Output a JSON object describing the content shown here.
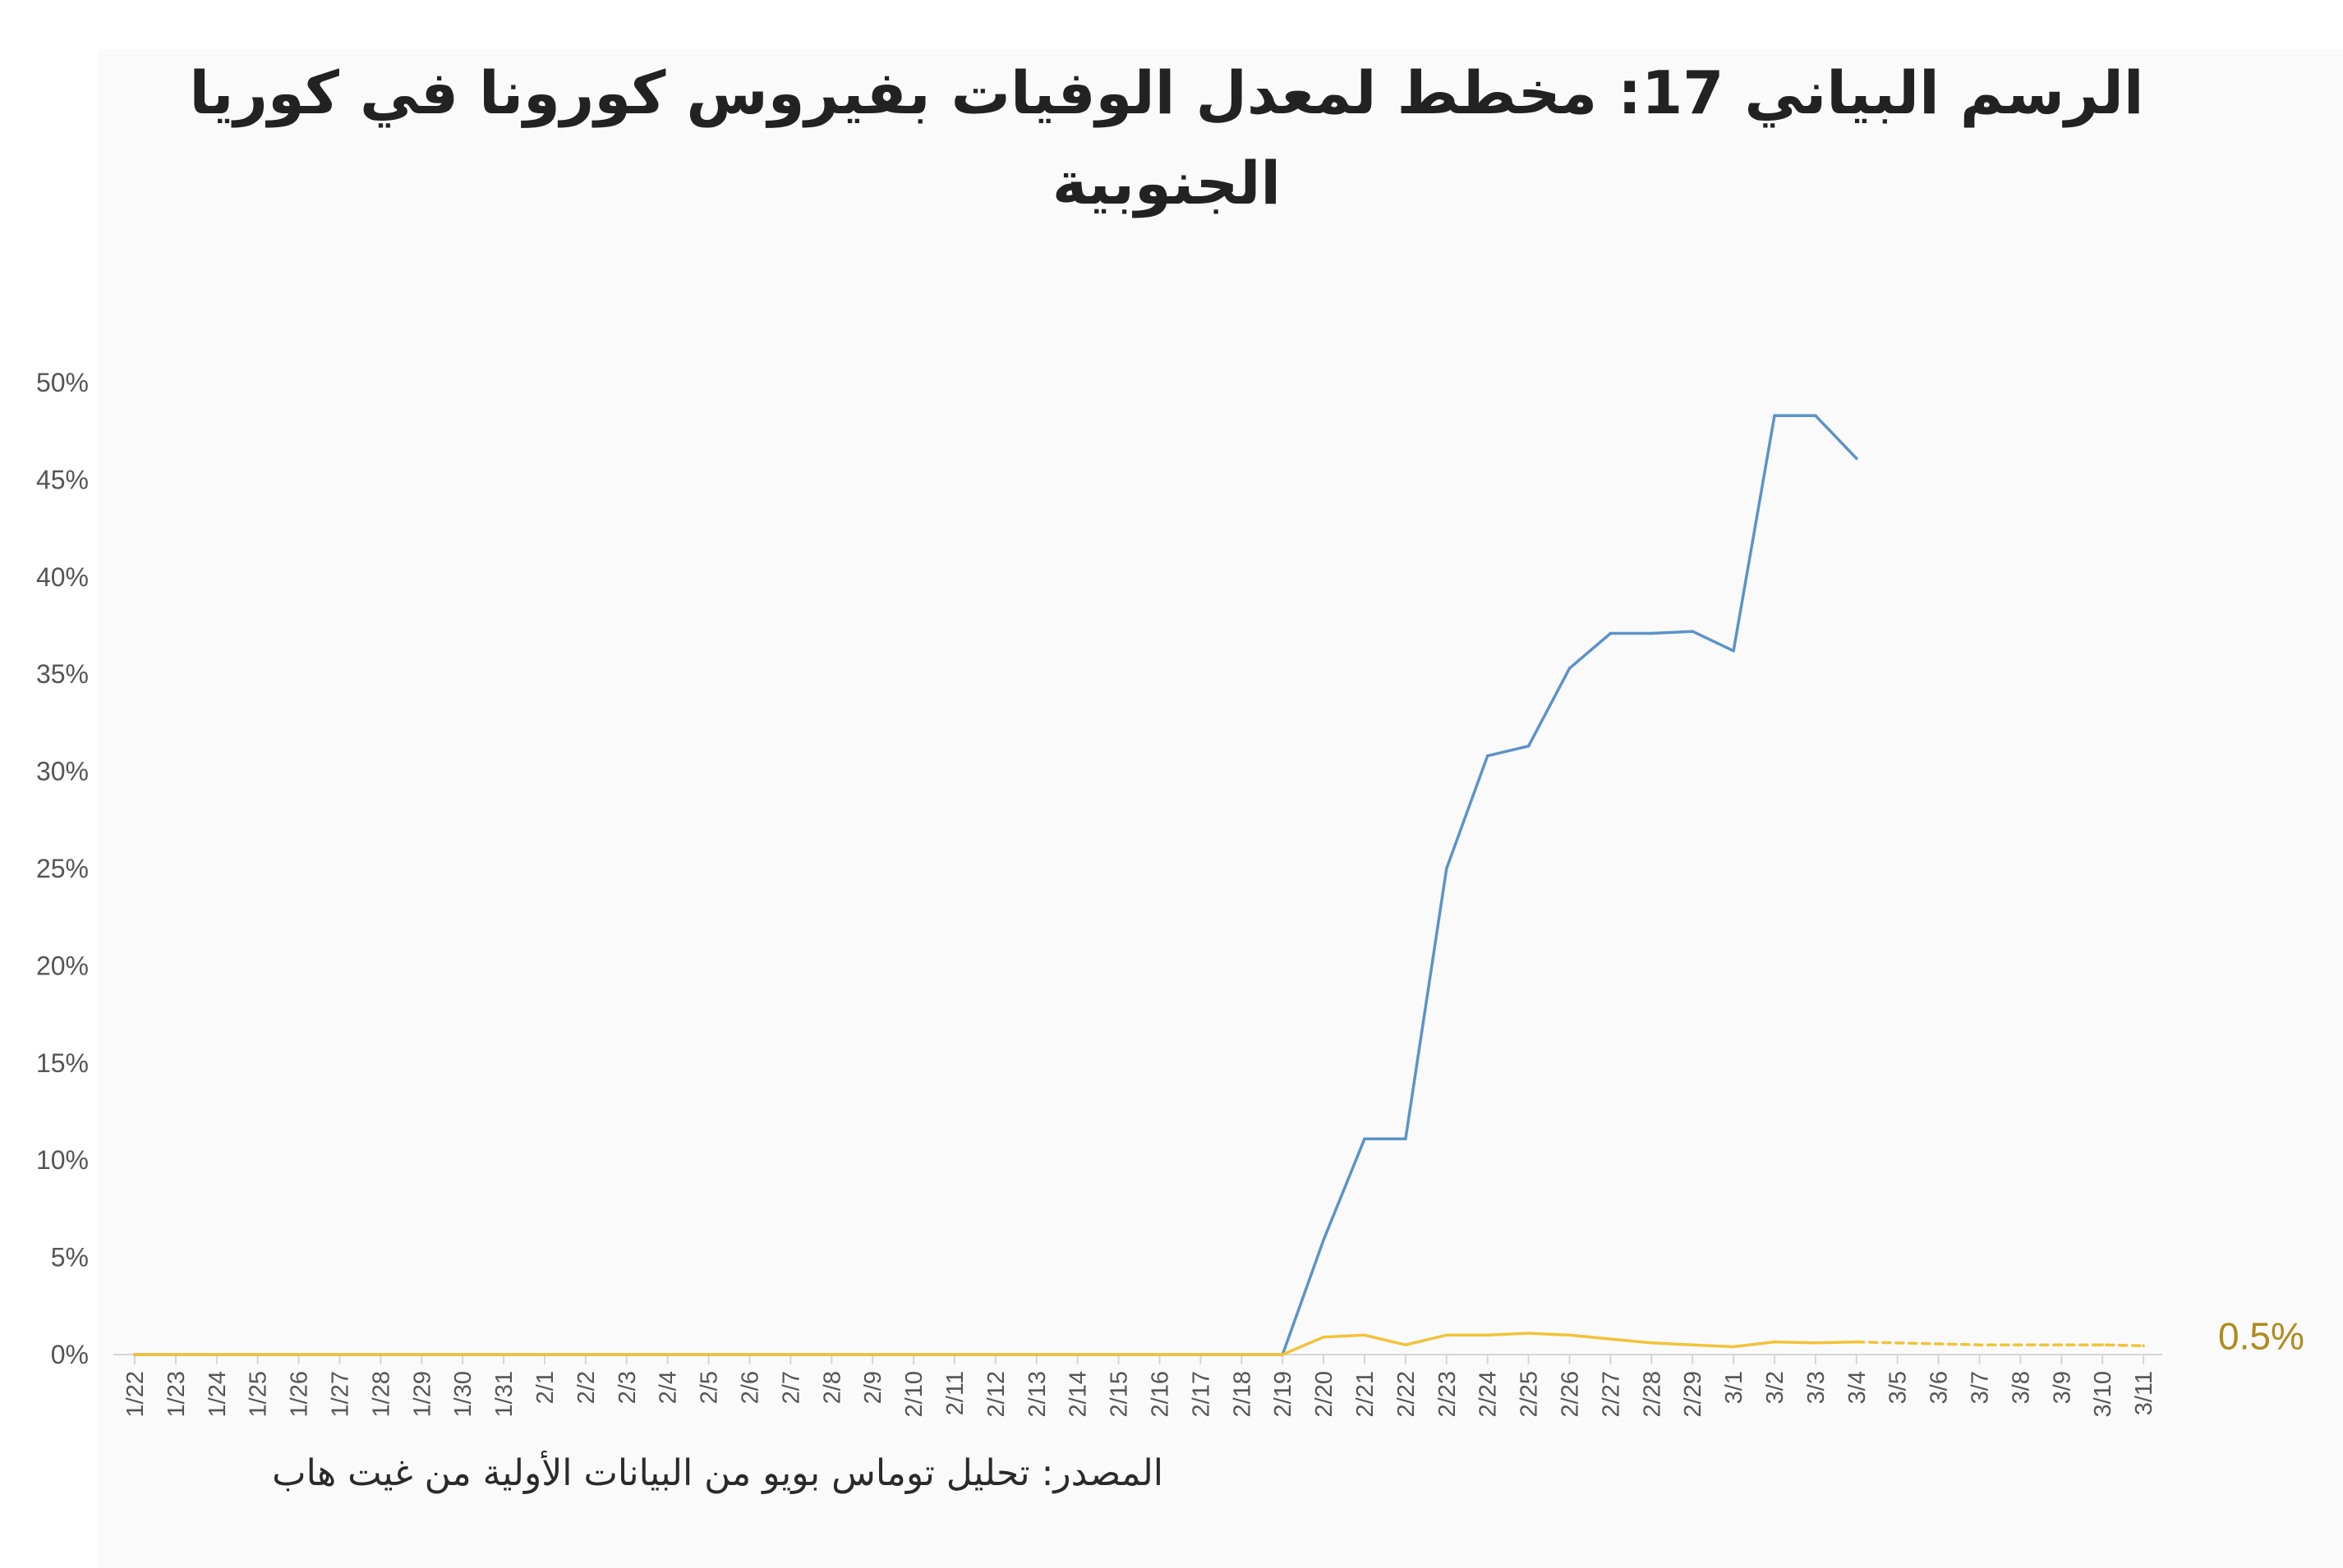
{
  "title": "الرسم البياني 17: مخطط لمعدل الوفيات بفيروس كورونا في كوريا الجنوبية",
  "source": "المصدر: تحليل توماس بويو من البيانات الأولية من غيت هاب",
  "colors": {
    "series_blue": "#5b93c8",
    "series_yellow": "#f3c237",
    "end_label": "#b08a1e",
    "axis": "#d6d6d6",
    "tick_text": "#555555"
  },
  "chart_data": {
    "type": "line",
    "title": "الرسم البياني 17: مخطط لمعدل الوفيات بفيروس كورونا في كوريا الجنوبية",
    "xlabel": "",
    "ylabel": "",
    "ylim": [
      0,
      50
    ],
    "grid": false,
    "y_ticks": [
      "0%",
      "5%",
      "10%",
      "15%",
      "20%",
      "25%",
      "30%",
      "35%",
      "40%",
      "45%",
      "50%"
    ],
    "categories": [
      "1/22",
      "1/23",
      "1/24",
      "1/25",
      "1/26",
      "1/27",
      "1/28",
      "1/29",
      "1/30",
      "1/31",
      "2/1",
      "2/2",
      "2/3",
      "2/4",
      "2/5",
      "2/6",
      "2/7",
      "2/8",
      "2/9",
      "2/10",
      "2/11",
      "2/12",
      "2/13",
      "2/14",
      "2/15",
      "2/16",
      "2/17",
      "2/18",
      "2/19",
      "2/20",
      "2/21",
      "2/22",
      "2/23",
      "2/24",
      "2/25",
      "2/26",
      "2/27",
      "2/28",
      "2/29",
      "3/1",
      "3/2",
      "3/3",
      "3/4",
      "3/5",
      "3/6",
      "3/7",
      "3/8",
      "3/9",
      "3/10",
      "3/11"
    ],
    "series": [
      {
        "color": "#5b93c8",
        "style": "solid",
        "values": [
          0,
          0,
          0,
          0,
          0,
          0,
          0,
          0,
          0,
          0,
          0,
          0,
          0,
          0,
          0,
          0,
          0,
          0,
          0,
          0,
          0,
          0,
          0,
          0,
          0,
          0,
          0,
          0,
          0,
          5.9,
          11.1,
          11.1,
          25.0,
          30.8,
          31.3,
          35.3,
          37.1,
          37.1,
          37.2,
          36.2,
          48.3,
          48.3,
          46.1,
          null,
          null,
          null,
          null,
          null,
          null,
          null
        ]
      },
      {
        "color": "#f3c237",
        "style": "solid",
        "values": [
          0,
          0,
          0,
          0,
          0,
          0,
          0,
          0,
          0,
          0,
          0,
          0,
          0,
          0,
          0,
          0,
          0,
          0,
          0,
          0,
          0,
          0,
          0,
          0,
          0,
          0,
          0,
          0,
          0,
          0.9,
          1.0,
          0.5,
          1.0,
          1.0,
          1.1,
          1.0,
          0.8,
          0.6,
          0.5,
          0.4,
          0.65,
          0.6,
          0.65,
          null,
          null,
          null,
          null,
          null,
          null,
          null
        ]
      },
      {
        "color": "#f3c237",
        "style": "dashed",
        "values": [
          null,
          null,
          null,
          null,
          null,
          null,
          null,
          null,
          null,
          null,
          null,
          null,
          null,
          null,
          null,
          null,
          null,
          null,
          null,
          null,
          null,
          null,
          null,
          null,
          null,
          null,
          null,
          null,
          null,
          null,
          null,
          null,
          null,
          null,
          null,
          null,
          null,
          null,
          null,
          null,
          null,
          null,
          0.65,
          0.6,
          0.55,
          0.5,
          0.5,
          0.5,
          0.5,
          0.45
        ]
      }
    ],
    "end_label": "0.5%"
  }
}
